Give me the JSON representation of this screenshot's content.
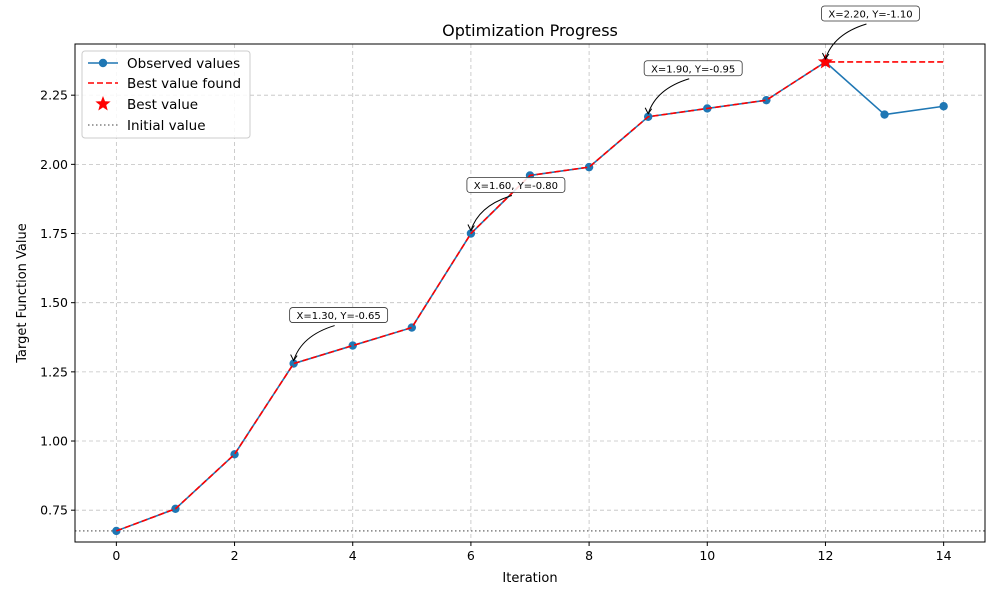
{
  "chart_data": {
    "type": "line",
    "title": "Optimization Progress",
    "xlabel": "Iteration",
    "ylabel": "Target Function Value",
    "xlim": [
      -0.7,
      14.7
    ],
    "ylim": [
      0.635,
      2.435
    ],
    "xticks": [
      0,
      2,
      4,
      6,
      8,
      10,
      12,
      14
    ],
    "yticks": [
      0.75,
      1.0,
      1.25,
      1.5,
      1.75,
      2.0,
      2.25
    ],
    "ytick_labels": [
      "0.75",
      "1.00",
      "1.25",
      "1.50",
      "1.75",
      "2.00",
      "2.25"
    ],
    "grid": true,
    "legend_position": "upper-left",
    "x": [
      0,
      1,
      2,
      3,
      4,
      5,
      6,
      7,
      8,
      9,
      10,
      11,
      12,
      13,
      14
    ],
    "series": [
      {
        "name": "Observed values",
        "style": "solid-with-markers",
        "color": "#1f77b4",
        "values": [
          0.675,
          0.755,
          0.952,
          1.28,
          1.345,
          1.41,
          1.75,
          1.96,
          1.99,
          2.172,
          2.202,
          2.232,
          2.37,
          2.18,
          2.21
        ]
      },
      {
        "name": "Best value found",
        "style": "dashed",
        "color": "#ff0000",
        "values": [
          0.675,
          0.755,
          0.952,
          1.28,
          1.345,
          1.41,
          1.75,
          1.96,
          1.99,
          2.172,
          2.202,
          2.232,
          2.37,
          2.37,
          2.37
        ]
      }
    ],
    "best_point": {
      "name": "Best value",
      "x": 12,
      "y": 2.37,
      "color": "#ff0000",
      "marker": "star"
    },
    "initial_value": {
      "name": "Initial value",
      "y": 0.675,
      "color": "#808080",
      "style": "dotted"
    },
    "annotations": [
      {
        "text": "X=1.30, Y=-0.65",
        "x": 3,
        "y": 1.28
      },
      {
        "text": "X=1.60, Y=-0.80",
        "x": 6,
        "y": 1.75
      },
      {
        "text": "X=1.90, Y=-0.95",
        "x": 9,
        "y": 2.172
      },
      {
        "text": "X=2.20, Y=-1.10",
        "x": 12,
        "y": 2.37
      }
    ]
  }
}
